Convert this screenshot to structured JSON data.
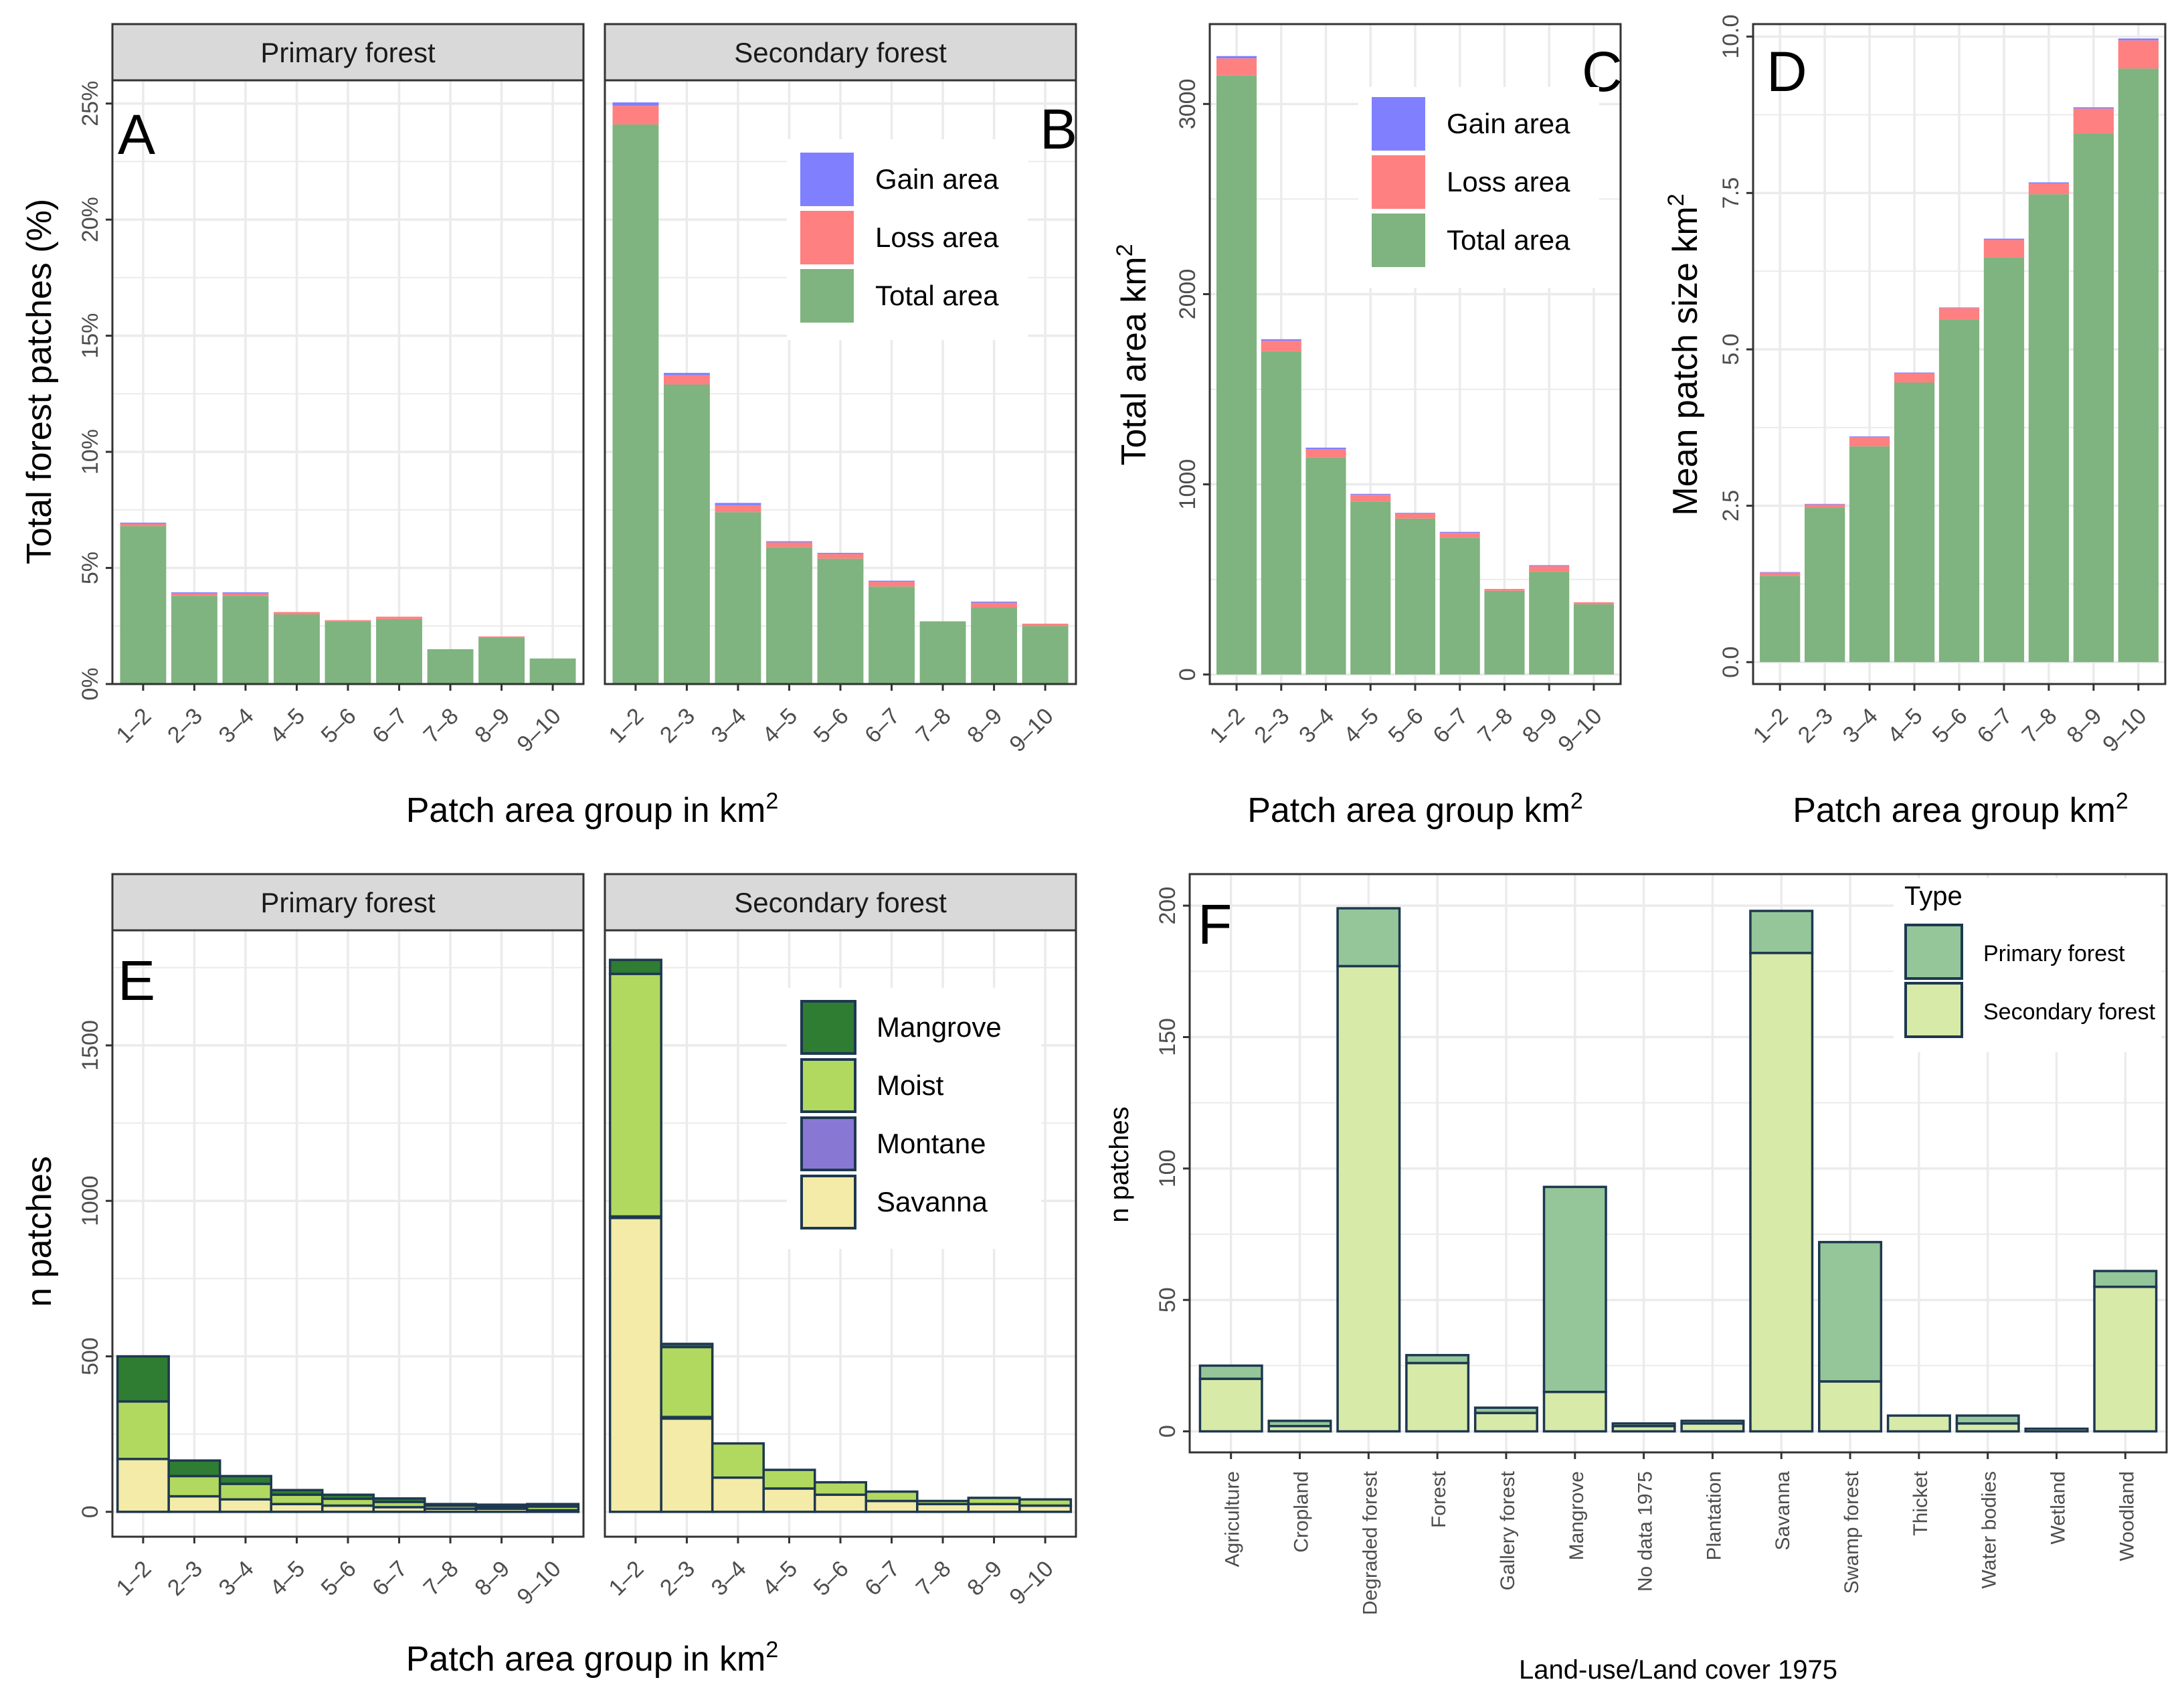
{
  "colors": {
    "gain": "#8080ff",
    "loss": "#ff8080",
    "total": "#7fb37f",
    "mangrove": "#2e7d32",
    "moist": "#b2d95f",
    "montane": "#8878d4",
    "savanna": "#f3eba7",
    "primary": "#94c69a",
    "secondary": "#d7eaa7",
    "outline": "#1e3850",
    "strip_bg": "#d9d9d9",
    "grid": "#ebebeb"
  },
  "chart_data": [
    {
      "id": "A",
      "panel_letter": "A",
      "type": "bar",
      "stacked": true,
      "facet": "Primary forest",
      "categories": [
        "1–2",
        "2–3",
        "3–4",
        "4–5",
        "5–6",
        "6–7",
        "7–8",
        "8–9",
        "9–10"
      ],
      "series": [
        {
          "name": "Total area",
          "values": [
            6.8,
            3.8,
            3.8,
            3.0,
            2.7,
            2.8,
            1.5,
            2.0,
            1.1
          ]
        },
        {
          "name": "Loss area",
          "values": [
            0.1,
            0.1,
            0.1,
            0.1,
            0.05,
            0.1,
            0,
            0.05,
            0
          ]
        },
        {
          "name": "Gain area",
          "values": [
            0.05,
            0.05,
            0.05,
            0,
            0,
            0,
            0,
            0,
            0
          ]
        }
      ],
      "ylim": [
        0,
        26
      ],
      "yticks": [
        0,
        5,
        10,
        15,
        20,
        25
      ],
      "ytick_labels": [
        "0%",
        "5%",
        "10%",
        "15%",
        "20%",
        "25%"
      ],
      "ylabel": "Total forest patches (%)",
      "xlabel": "Patch area group in  km",
      "xlabel_sup": "2"
    },
    {
      "id": "B",
      "panel_letter": "B",
      "type": "bar",
      "stacked": true,
      "facet": "Secondary forest",
      "categories": [
        "1–2",
        "2–3",
        "3–4",
        "4–5",
        "5–6",
        "6–7",
        "7–8",
        "8–9",
        "9–10"
      ],
      "series": [
        {
          "name": "Total area",
          "values": [
            24.1,
            12.9,
            7.4,
            5.9,
            5.4,
            4.2,
            2.7,
            3.3,
            2.5
          ]
        },
        {
          "name": "Loss area",
          "values": [
            0.8,
            0.4,
            0.3,
            0.2,
            0.2,
            0.2,
            0,
            0.2,
            0.1
          ]
        },
        {
          "name": "Gain area",
          "values": [
            0.15,
            0.1,
            0.1,
            0.05,
            0.05,
            0.05,
            0,
            0.05,
            0
          ]
        }
      ],
      "ylim": [
        0,
        26
      ],
      "legend": [
        {
          "label": "Gain area",
          "color_key": "gain"
        },
        {
          "label": "Loss area",
          "color_key": "loss"
        },
        {
          "label": "Total area",
          "color_key": "total"
        }
      ]
    },
    {
      "id": "C",
      "panel_letter": "C",
      "type": "bar",
      "stacked": true,
      "categories": [
        "1–2",
        "2–3",
        "3–4",
        "4–5",
        "5–6",
        "6–7",
        "7–8",
        "8–9",
        "9–10"
      ],
      "series": [
        {
          "name": "Total area",
          "values": [
            3150,
            1700,
            1140,
            910,
            820,
            720,
            440,
            540,
            370
          ]
        },
        {
          "name": "Loss area",
          "values": [
            90,
            55,
            45,
            35,
            25,
            25,
            10,
            30,
            10
          ]
        },
        {
          "name": "Gain area",
          "values": [
            12,
            8,
            8,
            5,
            5,
            5,
            0,
            5,
            0
          ]
        }
      ],
      "ylim": [
        -50,
        3420
      ],
      "yticks": [
        0,
        1000,
        2000,
        3000
      ],
      "ytick_labels": [
        "0",
        "1000",
        "2000",
        "3000"
      ],
      "ylabel": "Total area  km",
      "ylabel_sup": "2",
      "xlabel": "Patch area group  km",
      "xlabel_sup": "2",
      "legend": [
        {
          "label": "Gain area",
          "color_key": "gain"
        },
        {
          "label": "Loss area",
          "color_key": "loss"
        },
        {
          "label": "Total area",
          "color_key": "total"
        }
      ]
    },
    {
      "id": "D",
      "panel_letter": "D",
      "type": "bar",
      "stacked": true,
      "categories": [
        "1–2",
        "2–3",
        "3–4",
        "4–5",
        "5–6",
        "6–7",
        "7–8",
        "8–9",
        "9–10"
      ],
      "series": [
        {
          "name": "Total area",
          "values": [
            1.38,
            2.47,
            3.45,
            4.47,
            5.48,
            6.47,
            7.48,
            8.45,
            9.49
          ]
        },
        {
          "name": "Loss area",
          "values": [
            0.05,
            0.05,
            0.15,
            0.15,
            0.18,
            0.28,
            0.17,
            0.4,
            0.45
          ]
        },
        {
          "name": "Gain area",
          "values": [
            0.01,
            0.01,
            0.01,
            0.01,
            0.01,
            0.02,
            0.02,
            0.02,
            0.03
          ]
        }
      ],
      "ylim": [
        -0.35,
        10.2
      ],
      "yticks": [
        0,
        2.5,
        5,
        7.5,
        10
      ],
      "ytick_labels": [
        "0.0",
        "2.5",
        "5.0",
        "7.5",
        "10.0"
      ],
      "ylabel": "Mean patch size  km",
      "ylabel_sup": "2",
      "xlabel": "Patch area group  km",
      "xlabel_sup": "2"
    },
    {
      "id": "E",
      "panel_letter": "E",
      "type": "bar",
      "stacked": true,
      "facets": [
        "Primary forest",
        "Secondary forest"
      ],
      "categories": [
        "1–2",
        "2–3",
        "3–4",
        "4–5",
        "5–6",
        "6–7",
        "7–8",
        "8–9",
        "9–10"
      ],
      "facet_series": [
        [
          {
            "name": "Savanna",
            "values": [
              170,
              50,
              40,
              25,
              20,
              15,
              10,
              10,
              5
            ]
          },
          {
            "name": "Montane",
            "values": [
              0,
              0,
              0,
              0,
              0,
              0,
              0,
              0,
              0
            ]
          },
          {
            "name": "Moist",
            "values": [
              185,
              65,
              50,
              30,
              22,
              17,
              10,
              7,
              12
            ]
          },
          {
            "name": "Mangrove",
            "values": [
              145,
              50,
              25,
              15,
              13,
              11,
              5,
              6,
              8
            ]
          }
        ],
        [
          {
            "name": "Savanna",
            "values": [
              945,
              300,
              110,
              75,
              55,
              35,
              25,
              25,
              20
            ]
          },
          {
            "name": "Montane",
            "values": [
              5,
              5,
              0,
              0,
              0,
              0,
              0,
              0,
              0
            ]
          },
          {
            "name": "Moist",
            "values": [
              780,
              225,
              110,
              60,
              40,
              30,
              10,
              20,
              20
            ]
          },
          {
            "name": "Mangrove",
            "values": [
              45,
              10,
              0,
              0,
              0,
              0,
              0,
              0,
              0
            ]
          }
        ]
      ],
      "ylim": [
        -80,
        1870
      ],
      "yticks": [
        0,
        500,
        1000,
        1500
      ],
      "ytick_labels": [
        "0",
        "500",
        "1000",
        "1500"
      ],
      "ylabel": "n patches",
      "xlabel": "Patch area group in  km",
      "xlabel_sup": "2",
      "legend": [
        {
          "label": "Mangrove",
          "color_key": "mangrove"
        },
        {
          "label": "Moist",
          "color_key": "moist"
        },
        {
          "label": "Montane",
          "color_key": "montane"
        },
        {
          "label": "Savanna",
          "color_key": "savanna"
        }
      ]
    },
    {
      "id": "F",
      "panel_letter": "F",
      "type": "bar",
      "stacked": true,
      "categories": [
        "Agriculture",
        "Cropland",
        "Degraded forest",
        "Forest",
        "Gallery forest",
        "Mangrove",
        "No data 1975",
        "Plantation",
        "Savanna",
        "Swamp forest",
        "Thicket",
        "Water bodies",
        "Wetland",
        "Woodland"
      ],
      "series": [
        {
          "name": "Secondary forest",
          "values": [
            20,
            2,
            177,
            26,
            7,
            15,
            2,
            3,
            182,
            19,
            6,
            3,
            1,
            55
          ]
        },
        {
          "name": "Primary forest",
          "values": [
            5,
            2,
            22,
            3,
            2,
            78,
            1,
            1,
            16,
            53,
            0,
            3,
            0,
            6
          ]
        }
      ],
      "ylim": [
        -8,
        212
      ],
      "yticks": [
        0,
        50,
        100,
        150,
        200
      ],
      "ytick_labels": [
        "0",
        "50",
        "100",
        "150",
        "200"
      ],
      "ylabel": "n patches",
      "xlabel": "Land-use/Land cover 1975",
      "legend_title": "Type",
      "legend": [
        {
          "label": "Primary forest",
          "color_key": "primary"
        },
        {
          "label": "Secondary forest",
          "color_key": "secondary"
        }
      ]
    }
  ]
}
